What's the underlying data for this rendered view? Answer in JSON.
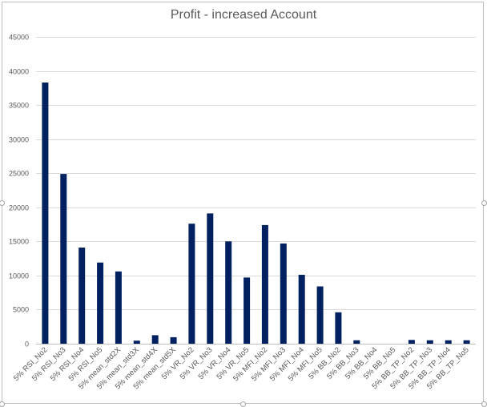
{
  "chart_data": {
    "type": "bar",
    "title": "Profit - increased Account",
    "xlabel": "",
    "ylabel": "",
    "ylim": [
      0,
      45000
    ],
    "yticks": [
      0,
      5000,
      10000,
      15000,
      20000,
      25000,
      30000,
      35000,
      40000,
      45000
    ],
    "grid": true,
    "legend": "none",
    "bar_color": "#002060",
    "categories": [
      "5% RSI_No2",
      "5% RSI_No3",
      "5% RSI_No4",
      "5% RSI_No5",
      "5% mean_std2X",
      "5% mean_std3X",
      "5% mean_std4X",
      "5% mean_std5X",
      "5% VR_No2",
      "5% VR_No3",
      "5% VR_No4",
      "5% VR_No5",
      "5% MFI_No2",
      "5% MFI_No3",
      "5% MFI_No4",
      "5% MFI_No5",
      "5% BB_No2",
      "5% BB_No3",
      "5% BB_No4",
      "5% BB_No5",
      "5% BB_TP_No2",
      "5% BB_TP_No3",
      "5% BB_TP_No4",
      "5% BB_TP_No5"
    ],
    "values": [
      38300,
      24900,
      14100,
      11900,
      10600,
      450,
      1250,
      950,
      17600,
      19100,
      15000,
      9700,
      17400,
      14700,
      10100,
      8400,
      4600,
      500,
      0,
      0,
      550,
      500,
      500,
      500
    ]
  }
}
